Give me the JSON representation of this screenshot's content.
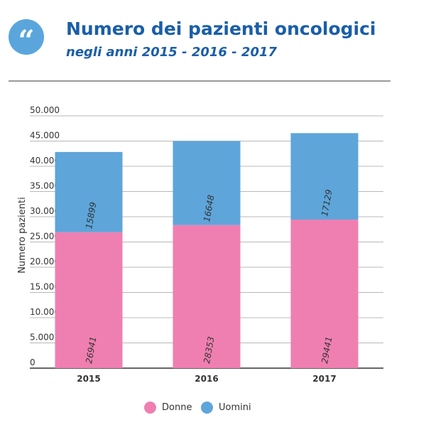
{
  "header": {
    "quote_glyph": "“",
    "title": "Numero dei pazienti oncologici",
    "subtitle": "negli anni 2015 - 2016 - 2017"
  },
  "colors": {
    "title": "#1a5ea8",
    "badge": "#5aa6dc",
    "donne": "#ef7fb1",
    "uomini": "#5ea5da"
  },
  "chart_data": {
    "type": "bar",
    "stacked": true,
    "categories": [
      "2015",
      "2016",
      "2017"
    ],
    "series": [
      {
        "name": "Donne",
        "values": [
          26941,
          28353,
          29441
        ],
        "labels": [
          "26941",
          "28353",
          "29441"
        ],
        "color": "#ef7fb1"
      },
      {
        "name": "Uomini",
        "values": [
          15899,
          16648,
          17129
        ],
        "labels": [
          "15899",
          "16648",
          "17129"
        ],
        "color": "#5ea5da"
      }
    ],
    "ylabel": "Numero pazienti",
    "xlabel": "",
    "ylim": [
      0,
      50000
    ],
    "yticks": [
      0,
      5000,
      10000,
      15000,
      20000,
      25000,
      30000,
      35000,
      40000,
      45000,
      50000
    ],
    "ytick_labels": [
      "0",
      "5.000",
      "10.000",
      "15.000",
      "20.000",
      "25.000",
      "30.000",
      "35.000",
      "40.000",
      "45.000",
      "50.000"
    ],
    "grid": true,
    "legend": "bottom-center"
  },
  "legend": {
    "items": [
      {
        "label": "Donne",
        "color": "#ef7fb1"
      },
      {
        "label": "Uomini",
        "color": "#5ea5da"
      }
    ]
  }
}
